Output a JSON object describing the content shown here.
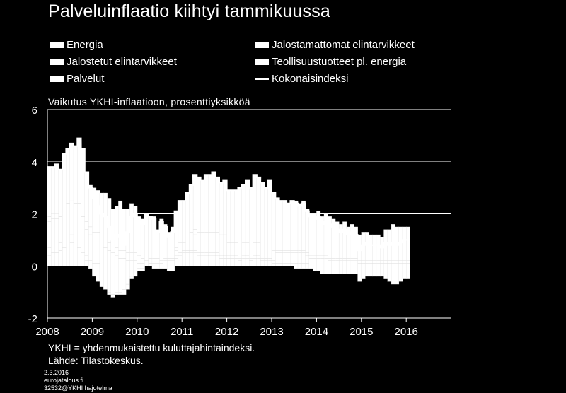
{
  "title": "Palveluinflaatio kiihtyi tammikuussa",
  "legend": [
    {
      "label": "Energia",
      "kind": "bar"
    },
    {
      "label": "Jalostamattomat elintarvikkeet",
      "kind": "bar"
    },
    {
      "label": "Jalostetut elintarvikkeet",
      "kind": "bar"
    },
    {
      "label": "Teollisuustuotteet pl. energia",
      "kind": "bar"
    },
    {
      "label": "Palvelut",
      "kind": "bar"
    },
    {
      "label": "Kokonaisindeksi",
      "kind": "line"
    }
  ],
  "subtitle": "Vaikutus YKHI-inflaatioon, prosenttiyksikköä",
  "footnote": "YKHI = yhdenmukaistettu  kuluttajahintaindeksi.",
  "source": " Lähde:  Tilastokeskus.",
  "date": "2.3.2016",
  "site": "eurojatalous.fi",
  "code": "32532@YKHI hajotelma",
  "colors": {
    "background": "#000000",
    "foreground": "#ffffff",
    "grid": "#ffffff"
  },
  "chart_data": {
    "type": "bar",
    "stacked": true,
    "frequency": "monthly",
    "x_start": "2008-01",
    "x_end": "2016-01",
    "x_ticks": [
      "2008",
      "2009",
      "2010",
      "2011",
      "2012",
      "2013",
      "2014",
      "2015",
      "2016"
    ],
    "y_ticks": [
      "6",
      "4",
      "2",
      "0",
      "-2"
    ],
    "ylim": [
      -2,
      6
    ],
    "grid": true,
    "series_order": [
      "Energia",
      "Jalostamattomat elintarvikkeet",
      "Jalostetut elintarvikkeet",
      "Teollisuustuotteet pl. energia",
      "Palvelut"
    ],
    "total": {
      "name": "Kokonaisindeksi",
      "values": [
        3.8,
        3.8,
        3.9,
        3.7,
        4.3,
        4.5,
        4.7,
        4.6,
        4.9,
        4.5,
        3.6,
        3.0,
        2.6,
        2.3,
        2.0,
        1.9,
        1.5,
        1.0,
        1.2,
        1.1,
        0.8,
        1.3,
        1.9,
        2.0,
        1.7,
        1.6,
        2.0,
        1.9,
        1.8,
        1.3,
        1.7,
        1.5,
        1.1,
        1.3,
        2.1,
        2.5,
        2.5,
        2.8,
        3.1,
        3.5,
        3.4,
        3.3,
        3.5,
        3.5,
        3.6,
        3.4,
        3.2,
        3.3,
        2.9,
        2.9,
        2.9,
        3.0,
        3.1,
        3.3,
        3.0,
        3.5,
        3.4,
        3.2,
        3.0,
        3.3,
        2.8,
        2.6,
        2.5,
        2.5,
        2.4,
        2.5,
        2.4,
        2.3,
        2.4,
        2.1,
        1.9,
        1.8,
        1.9,
        1.6,
        1.7,
        1.6,
        1.5,
        1.4,
        1.3,
        1.4,
        1.2,
        1.3,
        1.2,
        0.6,
        0.8,
        0.9,
        0.8,
        0.8,
        0.8,
        0.7,
        0.9,
        0.8,
        0.9,
        0.8,
        0.9,
        1.0,
        1.0
      ]
    },
    "series": [
      {
        "name": "Energia",
        "values": [
          0.4,
          0.5,
          0.5,
          0.6,
          0.7,
          0.8,
          0.9,
          0.8,
          0.7,
          0.5,
          0.2,
          -0.1,
          -0.4,
          -0.6,
          -0.8,
          -0.9,
          -1.0,
          -1.1,
          -1.0,
          -1.0,
          -0.9,
          -0.7,
          -0.4,
          -0.3,
          -0.1,
          -0.1,
          0.0,
          0.1,
          0.1,
          0.1,
          0.1,
          0.2,
          0.2,
          0.2,
          0.3,
          0.4,
          0.5,
          0.5,
          0.5,
          0.5,
          0.4,
          0.4,
          0.4,
          0.4,
          0.4,
          0.4,
          0.3,
          0.3,
          0.3,
          0.3,
          0.3,
          0.2,
          0.3,
          0.3,
          0.2,
          0.3,
          0.3,
          0.2,
          0.2,
          0.2,
          0.1,
          0.0,
          0.0,
          0.0,
          0.0,
          0.0,
          -0.1,
          -0.1,
          -0.1,
          -0.1,
          -0.1,
          -0.2,
          -0.2,
          -0.3,
          -0.3,
          -0.3,
          -0.3,
          -0.3,
          -0.3,
          -0.3,
          -0.3,
          -0.3,
          -0.3,
          -0.6,
          -0.5,
          -0.4,
          -0.4,
          -0.4,
          -0.4,
          -0.4,
          -0.5,
          -0.6,
          -0.7,
          -0.7,
          -0.6,
          -0.5,
          -0.5
        ]
      },
      {
        "name": "Jalostamattomat elintarvikkeet",
        "values": [
          0.3,
          0.3,
          0.3,
          0.3,
          0.3,
          0.3,
          0.3,
          0.3,
          0.3,
          0.3,
          0.2,
          0.2,
          0.1,
          0.1,
          0.0,
          0.0,
          -0.1,
          -0.1,
          -0.1,
          -0.1,
          -0.2,
          -0.2,
          -0.1,
          -0.1,
          -0.1,
          -0.1,
          0.0,
          0.0,
          0.0,
          0.0,
          0.0,
          0.0,
          0.0,
          0.0,
          0.1,
          0.1,
          0.1,
          0.1,
          0.1,
          0.1,
          0.1,
          0.1,
          0.1,
          0.1,
          0.1,
          0.1,
          0.1,
          0.1,
          0.1,
          0.1,
          0.1,
          0.1,
          0.1,
          0.1,
          0.1,
          0.1,
          0.1,
          0.1,
          0.1,
          0.1,
          0.1,
          0.1,
          0.1,
          0.1,
          0.1,
          0.1,
          0.1,
          0.1,
          0.1,
          0.1,
          0.0,
          0.0,
          0.0,
          0.0,
          0.0,
          0.0,
          0.0,
          0.0,
          0.0,
          0.0,
          0.0,
          0.0,
          0.0,
          0.0,
          0.0,
          0.0,
          0.0,
          0.0,
          0.0,
          0.0,
          0.0,
          0.0,
          0.0,
          0.0,
          0.0,
          0.0,
          0.0
        ]
      },
      {
        "name": "Jalostetut elintarvikkeet",
        "values": [
          1.0,
          1.0,
          1.0,
          1.0,
          1.1,
          1.1,
          1.1,
          1.1,
          1.1,
          1.1,
          1.0,
          1.0,
          0.9,
          0.9,
          0.8,
          0.7,
          0.6,
          0.5,
          0.4,
          0.3,
          0.3,
          0.2,
          0.2,
          0.2,
          0.1,
          0.1,
          0.0,
          0.0,
          -0.1,
          -0.1,
          -0.1,
          -0.1,
          -0.2,
          -0.2,
          0.2,
          0.3,
          0.3,
          0.4,
          0.5,
          0.6,
          0.6,
          0.6,
          0.6,
          0.6,
          0.6,
          0.6,
          0.6,
          0.6,
          0.5,
          0.5,
          0.5,
          0.5,
          0.5,
          0.5,
          0.5,
          0.5,
          0.5,
          0.5,
          0.5,
          0.5,
          0.4,
          0.4,
          0.4,
          0.4,
          0.4,
          0.4,
          0.4,
          0.4,
          0.4,
          0.3,
          0.3,
          0.3,
          0.3,
          0.3,
          0.3,
          0.2,
          0.2,
          0.2,
          0.2,
          0.2,
          0.2,
          0.2,
          0.2,
          0.1,
          0.1,
          0.1,
          0.1,
          0.1,
          0.1,
          0.1,
          0.1,
          0.1,
          0.1,
          0.1,
          0.1,
          0.1,
          0.1
        ]
      },
      {
        "name": "Teollisuustuotteet pl. energia",
        "values": [
          0.2,
          0.2,
          0.2,
          0.2,
          0.2,
          0.2,
          0.2,
          0.2,
          0.3,
          0.3,
          0.3,
          0.3,
          0.3,
          0.3,
          0.3,
          0.3,
          0.3,
          0.3,
          0.3,
          0.3,
          0.3,
          0.3,
          0.3,
          0.3,
          0.3,
          0.2,
          0.2,
          0.2,
          0.2,
          0.2,
          0.1,
          0.1,
          0.1,
          0.1,
          0.1,
          0.1,
          0.1,
          0.1,
          0.2,
          0.2,
          0.2,
          0.2,
          0.2,
          0.2,
          0.2,
          0.2,
          0.2,
          0.2,
          0.2,
          0.2,
          0.2,
          0.2,
          0.2,
          0.2,
          0.2,
          0.2,
          0.2,
          0.2,
          0.2,
          0.2,
          0.2,
          0.1,
          0.1,
          0.1,
          0.1,
          0.1,
          0.1,
          0.1,
          0.1,
          0.1,
          0.1,
          0.1,
          0.1,
          0.1,
          0.1,
          0.1,
          0.1,
          0.1,
          0.1,
          0.1,
          0.1,
          0.1,
          0.1,
          0.1,
          0.1,
          0.1,
          0.1,
          0.1,
          0.1,
          0.1,
          0.1,
          0.1,
          0.1,
          0.1,
          0.1,
          0.1,
          0.1
        ]
      },
      {
        "name": "Palvelut",
        "values": [
          1.9,
          1.8,
          1.9,
          1.6,
          2.0,
          2.1,
          2.2,
          2.2,
          2.5,
          2.3,
          1.9,
          1.6,
          1.7,
          1.6,
          1.7,
          1.8,
          1.7,
          1.4,
          1.6,
          1.9,
          1.6,
          1.7,
          1.9,
          1.8,
          1.5,
          1.5,
          1.8,
          1.6,
          1.6,
          1.1,
          1.6,
          1.3,
          1.0,
          1.2,
          1.4,
          1.6,
          1.5,
          1.7,
          1.8,
          2.1,
          2.1,
          2.0,
          2.2,
          2.2,
          2.3,
          2.1,
          2.0,
          2.1,
          1.8,
          1.8,
          1.8,
          2.0,
          2.0,
          2.2,
          2.0,
          2.4,
          2.3,
          2.2,
          2.0,
          2.3,
          2.0,
          2.0,
          1.9,
          1.9,
          1.8,
          1.9,
          1.9,
          1.8,
          1.9,
          1.7,
          1.6,
          1.6,
          1.7,
          1.5,
          1.6,
          1.6,
          1.5,
          1.4,
          1.3,
          1.4,
          1.2,
          1.3,
          1.2,
          1.0,
          1.1,
          1.1,
          1.0,
          1.0,
          1.0,
          0.9,
          1.2,
          1.2,
          1.4,
          1.3,
          1.3,
          1.3,
          1.3
        ]
      }
    ]
  }
}
